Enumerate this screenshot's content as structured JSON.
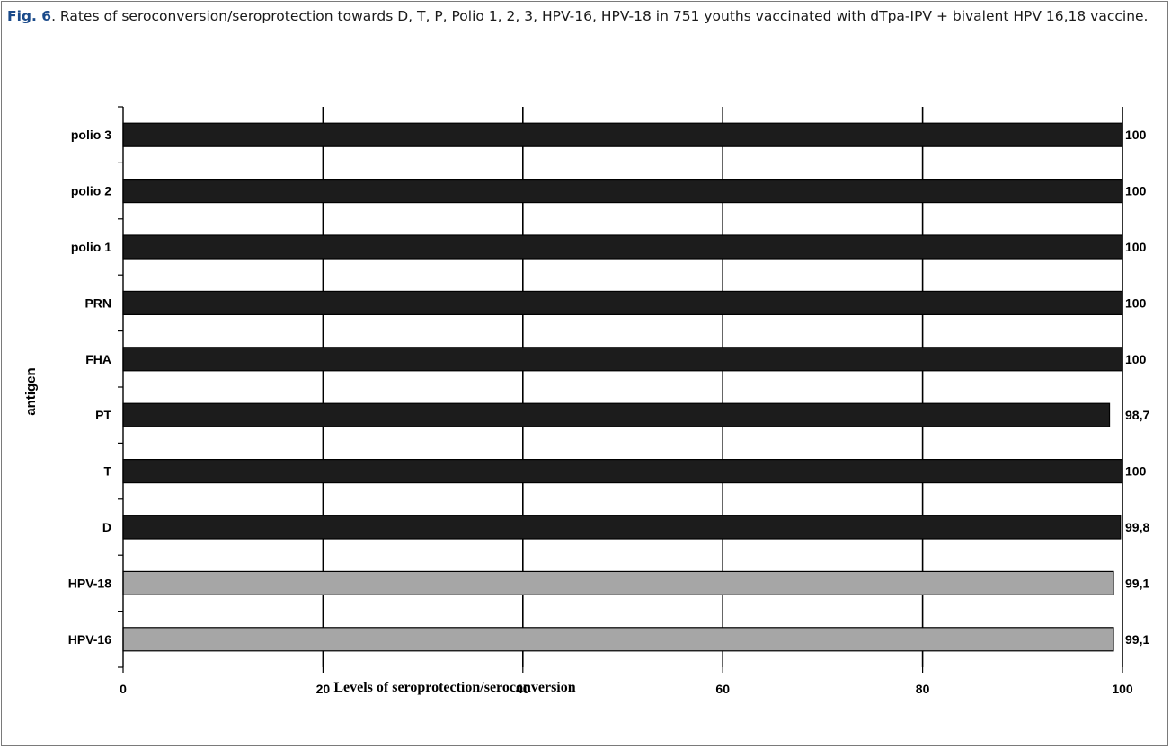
{
  "caption": {
    "label": "Fig. 6",
    "text": ". Rates of seroconversion/seroprotection towards D, T, P, Polio 1, 2, 3, HPV-16, HPV-18 in 751 youths vaccinated with dTpa-IPV + bivalent HPV 16,18 vaccine."
  },
  "colors": {
    "dark_bar": "#1c1c1c",
    "light_bar": "#a6a6a6",
    "bar_edge": "#000000"
  },
  "chart_data": {
    "type": "bar",
    "orientation": "horizontal",
    "title": "",
    "xlabel": "Levels of seroprotection/seroconversion",
    "ylabel": "antigen",
    "xlim": [
      0,
      100
    ],
    "xticks": [
      "0",
      "20",
      "40",
      "60",
      "80",
      "100"
    ],
    "grid": "vertical gridlines at each x tick",
    "categories": [
      "polio 3",
      "polio 2",
      "polio 1",
      "PRN",
      "FHA",
      "PT",
      "T",
      "D",
      "HPV-18",
      "HPV-16"
    ],
    "values": [
      100,
      100,
      100,
      100,
      100,
      98.7,
      100,
      99.8,
      99.1,
      99.1
    ],
    "value_labels": [
      "100",
      "100",
      "100",
      "100",
      "100",
      "98,7",
      "100",
      "99,8",
      "99,1",
      "99,1"
    ],
    "bar_colors": [
      "dark",
      "dark",
      "dark",
      "dark",
      "dark",
      "dark",
      "dark",
      "dark",
      "light",
      "light"
    ]
  }
}
